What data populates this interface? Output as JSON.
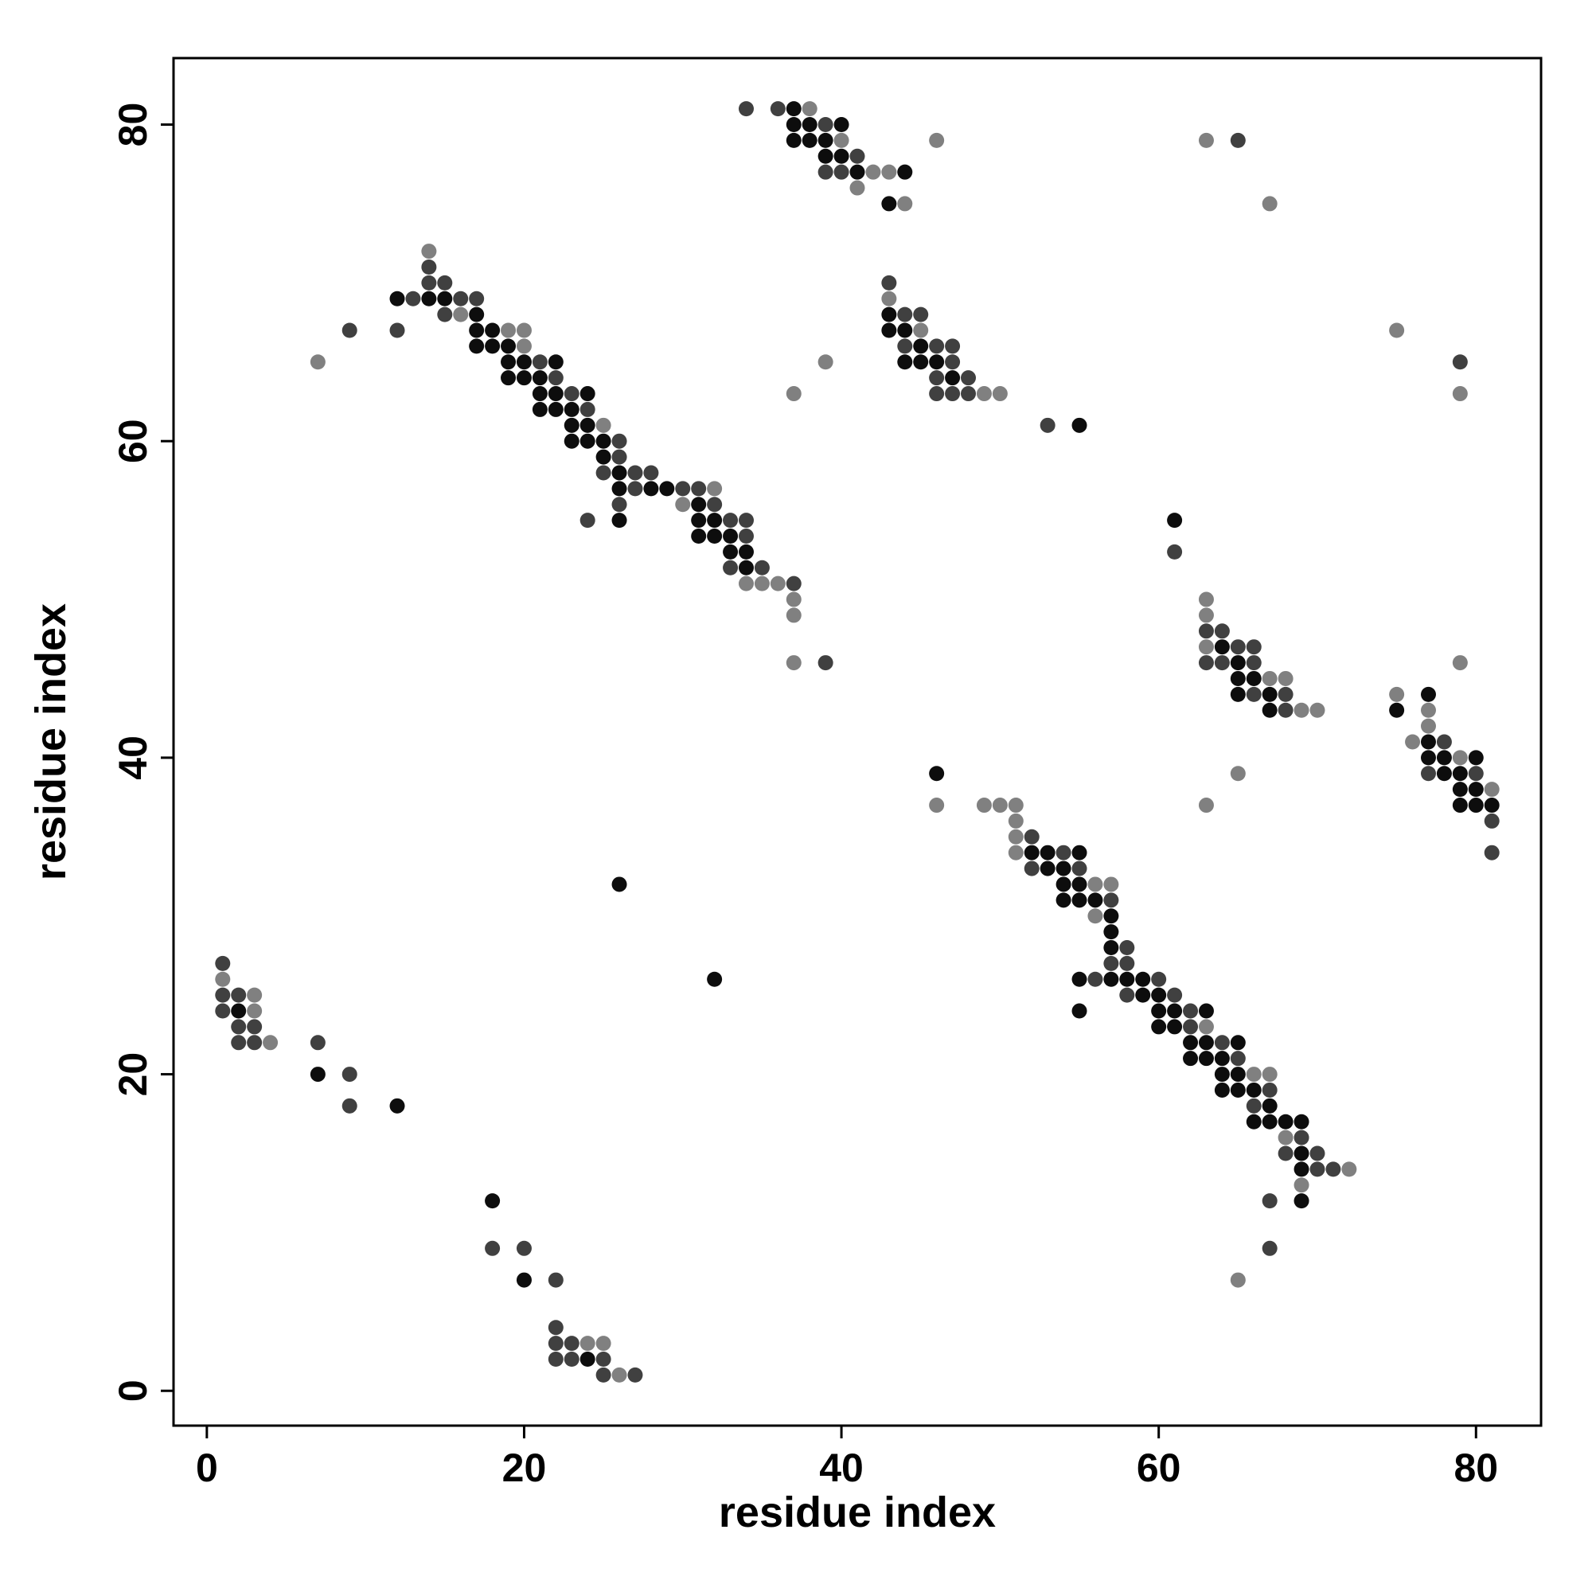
{
  "chart_data": {
    "type": "scatter",
    "x_label": "residue index",
    "y_label": "residue index",
    "xlim": [
      -2.1,
      84.1
    ],
    "ylim": [
      -2.2,
      84.2
    ],
    "xticks": [
      0,
      20,
      40,
      60,
      80
    ],
    "yticks": [
      0,
      20,
      40,
      60,
      80
    ],
    "series": [
      {
        "color": "#0d0d0d",
        "x": [
          2,
          7,
          12,
          18,
          20,
          24,
          26,
          32,
          12,
          14,
          15,
          17,
          17,
          17,
          18,
          18,
          19,
          19,
          19,
          20,
          20,
          21,
          21,
          21,
          22,
          22,
          22,
          23,
          23,
          23,
          24,
          24,
          24,
          25,
          25,
          26,
          26,
          26,
          28,
          29,
          31,
          31,
          31,
          32,
          32,
          33,
          33,
          34,
          34,
          37,
          37,
          38,
          40,
          37,
          38,
          39,
          39,
          40,
          41,
          44,
          43,
          43,
          43,
          44,
          45,
          44,
          45,
          46,
          47,
          55,
          61,
          64,
          65,
          65,
          66,
          65,
          67,
          67,
          75,
          77,
          77,
          77,
          78,
          80,
          78,
          79,
          79,
          80,
          79,
          80,
          81,
          46,
          52,
          53,
          55,
          53,
          54,
          54,
          55,
          54,
          55,
          56,
          57,
          57,
          57,
          55,
          57,
          58,
          59,
          55,
          59,
          60,
          60,
          61,
          63,
          60,
          61,
          62,
          63,
          65,
          62,
          63,
          64,
          64,
          65,
          64,
          65,
          66,
          67,
          66,
          67,
          68,
          69,
          69,
          69,
          69
        ],
        "y": [
          24,
          20,
          18,
          12,
          7,
          2,
          32,
          26,
          69,
          69,
          69,
          68,
          67,
          66,
          67,
          66,
          66,
          65,
          64,
          65,
          64,
          64,
          63,
          62,
          65,
          63,
          62,
          62,
          61,
          60,
          63,
          61,
          60,
          60,
          59,
          58,
          57,
          55,
          57,
          57,
          56,
          55,
          54,
          55,
          54,
          54,
          53,
          53,
          52,
          81,
          80,
          80,
          80,
          79,
          79,
          79,
          78,
          78,
          77,
          77,
          75,
          68,
          67,
          67,
          66,
          65,
          65,
          65,
          64,
          61,
          55,
          47,
          46,
          45,
          45,
          44,
          44,
          43,
          43,
          44,
          41,
          40,
          40,
          40,
          39,
          39,
          38,
          38,
          37,
          37,
          37,
          39,
          34,
          34,
          34,
          33,
          33,
          32,
          32,
          31,
          31,
          31,
          30,
          29,
          28,
          26,
          26,
          26,
          26,
          24,
          25,
          25,
          24,
          24,
          24,
          23,
          23,
          22,
          22,
          22,
          21,
          21,
          21,
          20,
          20,
          19,
          19,
          19,
          18,
          17,
          17,
          17,
          17,
          15,
          14,
          12
        ]
      },
      {
        "color": "#404040",
        "x": [
          1,
          1,
          1,
          2,
          2,
          2,
          3,
          3,
          7,
          9,
          9,
          18,
          20,
          22,
          22,
          22,
          22,
          23,
          23,
          25,
          25,
          27,
          9,
          12,
          13,
          14,
          14,
          15,
          15,
          16,
          17,
          21,
          22,
          23,
          24,
          24,
          25,
          26,
          26,
          26,
          27,
          27,
          28,
          30,
          31,
          32,
          33,
          33,
          34,
          34,
          35,
          37,
          39,
          34,
          36,
          39,
          41,
          39,
          40,
          43,
          44,
          45,
          44,
          46,
          47,
          47,
          46,
          48,
          46,
          47,
          48,
          53,
          65,
          79,
          61,
          63,
          64,
          65,
          66,
          63,
          64,
          66,
          66,
          68,
          68,
          78,
          77,
          80,
          81,
          81,
          52,
          54,
          52,
          55,
          57,
          58,
          57,
          58,
          56,
          60,
          58,
          61,
          62,
          62,
          64,
          65,
          67,
          66,
          69,
          68,
          70,
          70,
          71,
          67,
          67
        ],
        "y": [
          27,
          25,
          24,
          25,
          23,
          22,
          23,
          22,
          22,
          20,
          18,
          9,
          9,
          7,
          4,
          3,
          2,
          3,
          2,
          2,
          1,
          1,
          67,
          67,
          69,
          71,
          70,
          70,
          68,
          69,
          69,
          65,
          64,
          63,
          62,
          55,
          58,
          60,
          59,
          56,
          58,
          57,
          58,
          57,
          57,
          56,
          55,
          52,
          55,
          54,
          52,
          51,
          46,
          81,
          81,
          80,
          78,
          77,
          77,
          70,
          68,
          68,
          66,
          66,
          66,
          65,
          64,
          64,
          63,
          63,
          63,
          61,
          79,
          65,
          53,
          48,
          48,
          47,
          47,
          46,
          46,
          46,
          44,
          44,
          43,
          41,
          39,
          39,
          36,
          34,
          35,
          34,
          33,
          33,
          31,
          28,
          27,
          27,
          26,
          26,
          25,
          25,
          24,
          23,
          22,
          21,
          19,
          18,
          16,
          15,
          15,
          14,
          14,
          12,
          9
        ]
      },
      {
        "color": "#808080",
        "x": [
          1,
          3,
          3,
          4,
          24,
          25,
          26,
          7,
          14,
          16,
          19,
          20,
          20,
          25,
          30,
          32,
          34,
          35,
          36,
          37,
          37,
          37,
          38,
          40,
          42,
          43,
          41,
          44,
          46,
          37,
          39,
          43,
          45,
          49,
          50,
          63,
          67,
          75,
          79,
          63,
          63,
          63,
          67,
          68,
          69,
          70,
          79,
          75,
          77,
          77,
          76,
          79,
          81,
          63,
          65,
          46,
          49,
          50,
          51,
          51,
          51,
          51,
          56,
          57,
          56,
          63,
          66,
          67,
          68,
          72,
          69,
          65
        ],
        "y": [
          26,
          25,
          24,
          22,
          3,
          3,
          1,
          65,
          72,
          68,
          67,
          67,
          66,
          61,
          56,
          57,
          51,
          51,
          51,
          50,
          49,
          46,
          81,
          79,
          77,
          77,
          76,
          75,
          79,
          63,
          65,
          69,
          67,
          63,
          63,
          79,
          75,
          67,
          63,
          50,
          49,
          47,
          45,
          45,
          43,
          43,
          46,
          44,
          43,
          42,
          41,
          40,
          38,
          37,
          39,
          37,
          37,
          37,
          37,
          36,
          35,
          34,
          32,
          32,
          30,
          23,
          20,
          20,
          16,
          14,
          13,
          7
        ]
      }
    ]
  }
}
